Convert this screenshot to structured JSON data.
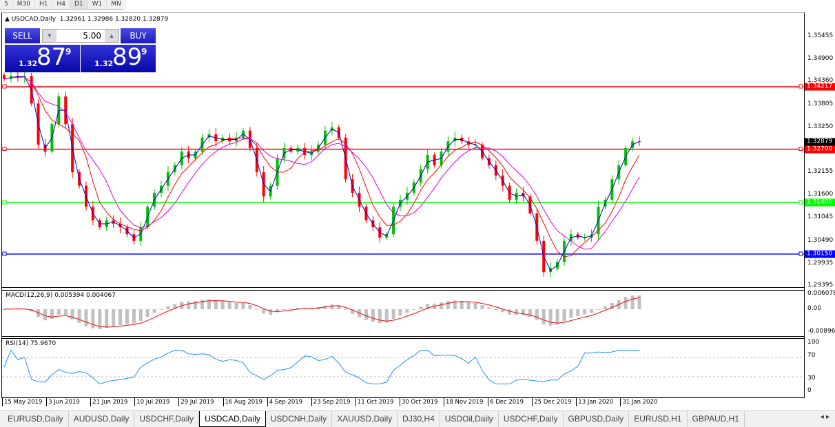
{
  "timeframes": [
    "5",
    "M30",
    "H1",
    "H4",
    "D1",
    "W1",
    "MN"
  ],
  "active_timeframe": "D1",
  "chart": {
    "title": "USDCAD,Daily",
    "ohlc": "1.32961 1.32986 1.32820 1.32879",
    "last_price": "1.32879"
  },
  "trade_panel": {
    "sell_label": "SELL",
    "buy_label": "BUY",
    "lot": "5.00",
    "sell_prefix": "1.32",
    "sell_big": "87",
    "sell_sup": "9",
    "buy_prefix": "1.32",
    "buy_big": "89",
    "buy_sup": "9"
  },
  "price_axis": [
    "1.35455",
    "1.34900",
    "1.34360",
    "1.33805",
    "1.33250",
    "1.32155",
    "1.31600",
    "1.31045",
    "1.30490",
    "1.29935",
    "1.29395"
  ],
  "levels": [
    {
      "price": "1.34217",
      "color": "#ff0000"
    },
    {
      "price": "1.32700",
      "color": "#ff0000"
    },
    {
      "price": "1.31400",
      "color": "#00ff00"
    },
    {
      "price": "1.30150",
      "color": "#0000ff"
    }
  ],
  "colors": {
    "bull": "#00c000",
    "bear": "#ff0000",
    "ma_fast": "#0000cc",
    "ma_mid": "#ff0000",
    "ma_slow": "#e000e0",
    "macd_hist": "#c0c0c0",
    "macd_signal": "#ff0000",
    "rsi": "#1e90ff"
  },
  "closes": [
    1.344,
    1.3448,
    1.3445,
    1.3448,
    1.3381,
    1.3281,
    1.3264,
    1.3331,
    1.3398,
    1.3331,
    1.3214,
    1.3181,
    1.313,
    1.3097,
    1.308,
    1.3097,
    1.3089,
    1.308,
    1.3063,
    1.3047,
    1.308,
    1.313,
    1.3164,
    1.3181,
    1.3214,
    1.3231,
    1.3264,
    1.3248,
    1.3264,
    1.3298,
    1.3306,
    1.3289,
    1.3298,
    1.3289,
    1.3298,
    1.3315,
    1.3273,
    1.3214,
    1.3155,
    1.3181,
    1.3248,
    1.3273,
    1.3264,
    1.3273,
    1.3256,
    1.3264,
    1.3281,
    1.3315,
    1.3323,
    1.3298,
    1.3197,
    1.3164,
    1.313,
    1.3097,
    1.308,
    1.3055,
    1.3063,
    1.313,
    1.3147,
    1.3164,
    1.3189,
    1.3222,
    1.3256,
    1.3231,
    1.3264,
    1.3289,
    1.3298,
    1.3289,
    1.3281,
    1.3281,
    1.3248,
    1.3231,
    1.3206,
    1.3181,
    1.3147,
    1.3164,
    1.3155,
    1.3114,
    1.3047,
    1.2971,
    1.298,
    1.2996,
    1.3047,
    1.3063,
    1.3055,
    1.3055,
    1.3063,
    1.313,
    1.3147,
    1.3197,
    1.3231,
    1.3273,
    1.3289,
    1.3288
  ],
  "macd": {
    "label": "MACD(12,26,9) 0.005394 0.004067",
    "axis": [
      "0.006078",
      "0.00",
      "-0.008965"
    ]
  },
  "rsi": {
    "label": "RSI(14) 75.9670",
    "axis": [
      "100",
      "70",
      "30",
      "0"
    ]
  },
  "dates": [
    "15 May 2019",
    "3 Jun 2019",
    "21 Jun 2019",
    "10 Jul 2019",
    "29 Jul 2019",
    "16 Aug 2019",
    "4 Sep 2019",
    "23 Sep 2019",
    "11 Oct 2019",
    "30 Oct 2019",
    "18 Nov 2019",
    "6 Dec 2019",
    "25 Dec 2019",
    "13 Jan 2020",
    "31 Jan 2020"
  ],
  "tabs": [
    "EURUSD,Daily",
    "AUDUSD,Daily",
    "USDCHF,Daily",
    "USDCAD,Daily",
    "USDCNH,Daily",
    "XAUUSD,Daily",
    "DJ30,H4",
    "USDOil,Daily",
    "USDCHF,Daily",
    "GBPUSD,Daily",
    "EURUSD,H1",
    "GBPAUD,H1"
  ],
  "active_tab": "USDCAD,Daily"
}
